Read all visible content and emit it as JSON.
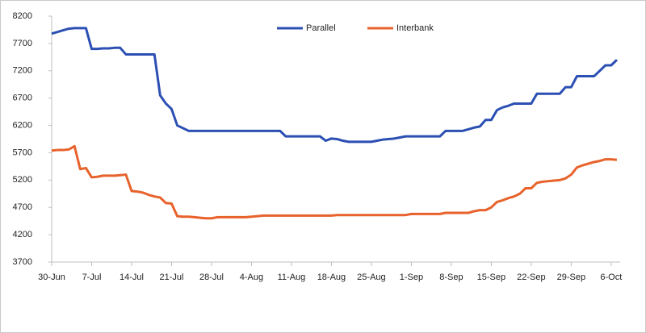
{
  "chart_data": {
    "type": "line",
    "categories": [
      "30-Jun",
      null,
      null,
      null,
      null,
      null,
      null,
      "7-Jul",
      null,
      null,
      null,
      null,
      null,
      null,
      "14-Jul",
      null,
      null,
      null,
      null,
      null,
      null,
      "21-Jul",
      null,
      null,
      null,
      null,
      null,
      null,
      "28-Jul",
      null,
      null,
      null,
      null,
      null,
      null,
      "4-Aug",
      null,
      null,
      null,
      null,
      null,
      null,
      "11-Aug",
      null,
      null,
      null,
      null,
      null,
      null,
      "18-Aug",
      null,
      null,
      null,
      null,
      null,
      null,
      "25-Aug",
      null,
      null,
      null,
      null,
      null,
      null,
      "1-Sep",
      null,
      null,
      null,
      null,
      null,
      null,
      "8-Sep",
      null,
      null,
      null,
      null,
      null,
      null,
      "15-Sep",
      null,
      null,
      null,
      null,
      null,
      null,
      "22-Sep",
      null,
      null,
      null,
      null,
      null,
      null,
      "29-Sep",
      null,
      null,
      null,
      null,
      null,
      null,
      "6-Oct",
      null
    ],
    "series": [
      {
        "name": "Parallel",
        "color": "#2b4fb3",
        "values": [
          7880,
          7910,
          7940,
          7970,
          7980,
          7980,
          7980,
          7600,
          7600,
          7610,
          7610,
          7620,
          7620,
          7500,
          7500,
          7500,
          7500,
          7500,
          7500,
          6750,
          6600,
          6500,
          6200,
          6150,
          6100,
          6100,
          6100,
          6100,
          6100,
          6100,
          6100,
          6100,
          6100,
          6100,
          6100,
          6100,
          6100,
          6100,
          6100,
          6100,
          6100,
          6000,
          6000,
          6000,
          6000,
          6000,
          6000,
          6000,
          5920,
          5960,
          5950,
          5920,
          5900,
          5900,
          5900,
          5900,
          5900,
          5920,
          5940,
          5950,
          5960,
          5980,
          6000,
          6000,
          6000,
          6000,
          6000,
          6000,
          6000,
          6100,
          6100,
          6100,
          6100,
          6130,
          6160,
          6180,
          6300,
          6300,
          6480,
          6530,
          6560,
          6600,
          6600,
          6600,
          6600,
          6780,
          6780,
          6780,
          6780,
          6780,
          6900,
          6900,
          7100,
          7100,
          7100,
          7100,
          7200,
          7300,
          7300,
          7400
        ]
      },
      {
        "name": "Interbank",
        "color": "#e8622c",
        "values": [
          5740,
          5750,
          5750,
          5760,
          5820,
          5400,
          5420,
          5250,
          5260,
          5280,
          5280,
          5280,
          5290,
          5300,
          5000,
          4990,
          4970,
          4930,
          4900,
          4880,
          4780,
          4770,
          4540,
          4530,
          4530,
          4520,
          4510,
          4500,
          4500,
          4520,
          4520,
          4520,
          4520,
          4520,
          4520,
          4530,
          4540,
          4550,
          4550,
          4550,
          4550,
          4550,
          4550,
          4550,
          4550,
          4550,
          4550,
          4550,
          4550,
          4550,
          4560,
          4560,
          4560,
          4560,
          4560,
          4560,
          4560,
          4560,
          4560,
          4560,
          4560,
          4560,
          4560,
          4580,
          4580,
          4580,
          4580,
          4580,
          4580,
          4600,
          4600,
          4600,
          4600,
          4600,
          4630,
          4650,
          4650,
          4700,
          4800,
          4830,
          4870,
          4900,
          4950,
          5050,
          5050,
          5150,
          5170,
          5180,
          5190,
          5200,
          5230,
          5300,
          5430,
          5470,
          5500,
          5530,
          5550,
          5580,
          5580,
          5570
        ]
      }
    ],
    "ylim": [
      3700,
      8200
    ],
    "yticks": [
      3700,
      4200,
      4700,
      5200,
      5700,
      6200,
      6700,
      7200,
      7700,
      8200
    ],
    "grid": false,
    "legend": "top"
  }
}
